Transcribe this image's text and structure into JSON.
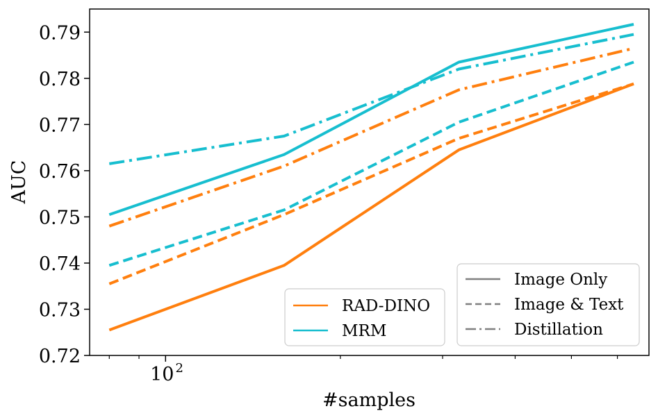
{
  "chart_data": {
    "type": "line",
    "xscale": "log",
    "xlabel": "#samples",
    "ylabel": "AUC",
    "xlim": [
      74,
      680
    ],
    "ylim": [
      0.72,
      0.795
    ],
    "x_major_ticks": [
      {
        "value": 100,
        "label": "10",
        "exp": "2"
      }
    ],
    "x_minor_ticks": [
      80,
      90,
      200,
      300,
      400,
      500,
      600
    ],
    "y_ticks": [
      0.72,
      0.73,
      0.74,
      0.75,
      0.76,
      0.77,
      0.78,
      0.79
    ],
    "y_tick_labels": [
      "0.72",
      "0.73",
      "0.74",
      "0.75",
      "0.76",
      "0.77",
      "0.78",
      "0.79"
    ],
    "x": [
      80,
      160,
      320,
      640
    ],
    "colors": {
      "RAD-DINO": "#ff7f0e",
      "MRM": "#17becf",
      "style_legend": "#7f7f7f"
    },
    "series": [
      {
        "model": "MRM",
        "style": "solid",
        "values": [
          0.7505,
          0.7635,
          0.7835,
          0.7917
        ]
      },
      {
        "model": "MRM",
        "style": "dashed",
        "values": [
          0.7395,
          0.7515,
          0.7705,
          0.7835
        ]
      },
      {
        "model": "MRM",
        "style": "dashdot",
        "values": [
          0.7615,
          0.7675,
          0.782,
          0.7895
        ]
      },
      {
        "model": "RAD-DINO",
        "style": "solid",
        "values": [
          0.7255,
          0.7395,
          0.7645,
          0.7788
        ]
      },
      {
        "model": "RAD-DINO",
        "style": "dashed",
        "values": [
          0.7355,
          0.7505,
          0.767,
          0.7788
        ]
      },
      {
        "model": "RAD-DINO",
        "style": "dashdot",
        "values": [
          0.748,
          0.761,
          0.7775,
          0.7865
        ]
      }
    ],
    "legend_models": [
      {
        "label": "RAD-DINO",
        "color": "#ff7f0e"
      },
      {
        "label": "MRM",
        "color": "#17becf"
      }
    ],
    "legend_styles": [
      {
        "label": "Image Only",
        "style": "solid"
      },
      {
        "label": "Image & Text",
        "style": "dashed"
      },
      {
        "label": "Distillation",
        "style": "dashdot"
      }
    ]
  }
}
